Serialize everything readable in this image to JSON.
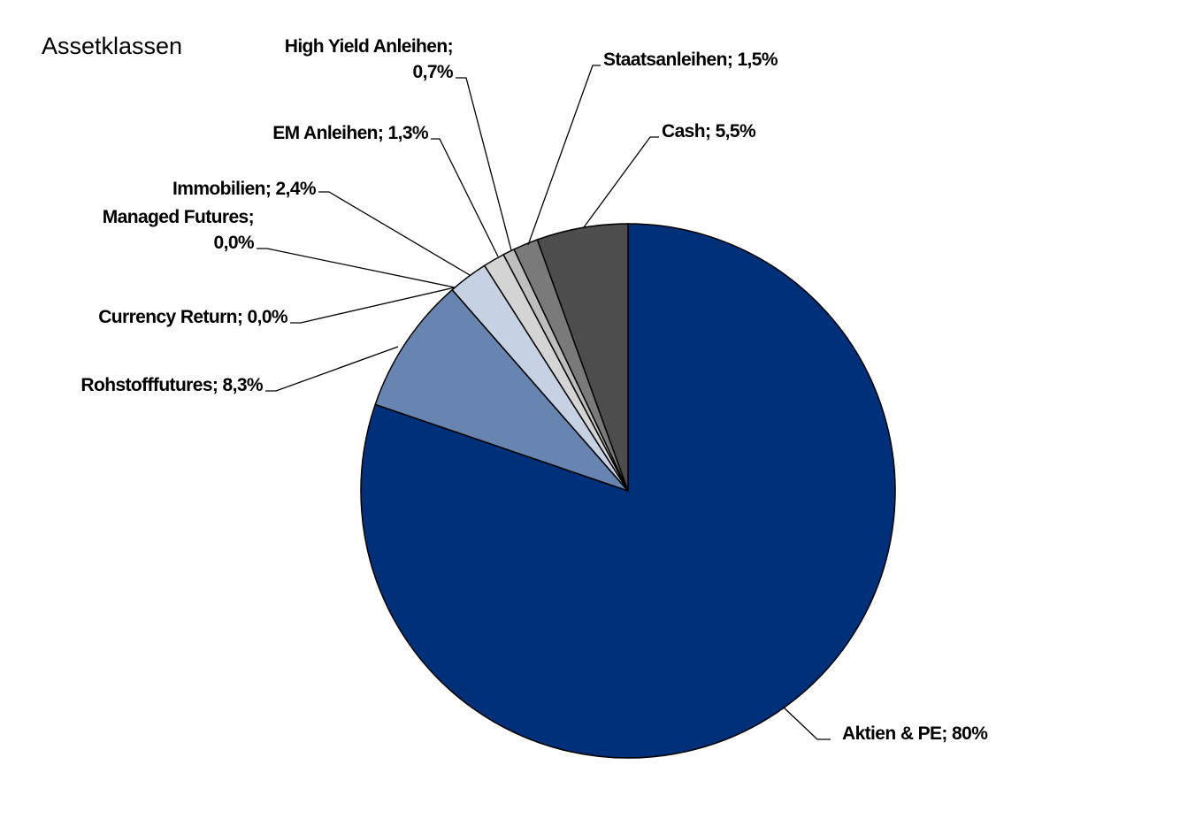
{
  "chart_data": {
    "type": "pie",
    "title": "Assetklassen",
    "slices": [
      {
        "key": "aktien",
        "name": "Aktien & PE",
        "value": 80,
        "display": "Aktien & PE; 80%",
        "label_lines": [
          "Aktien & PE; 80%"
        ],
        "color": "#00307A"
      },
      {
        "key": "rohstoff",
        "name": "Rohstofffutures",
        "value": 8.3,
        "display": "Rohstofffutures; 8,3%",
        "label_lines": [
          "Rohstofffutures; 8,3%"
        ],
        "color": "#6785B0"
      },
      {
        "key": "currency",
        "name": "Currency Return",
        "value": 0.0,
        "display": "Currency Return; 0,0%",
        "label_lines": [
          "Currency Return; 0,0%"
        ],
        "color": "#9FB3D1"
      },
      {
        "key": "managed",
        "name": "Managed Futures",
        "value": 0.0,
        "display": "Managed Futures; 0,0%",
        "label_lines": [
          "Managed Futures;",
          "0,0%"
        ],
        "color": "#B3C2DA"
      },
      {
        "key": "immobilien",
        "name": "Immobilien",
        "value": 2.4,
        "display": "Immobilien; 2,4%",
        "label_lines": [
          "Immobilien; 2,4%"
        ],
        "color": "#C6D1E4"
      },
      {
        "key": "em",
        "name": "EM Anleihen",
        "value": 1.3,
        "display": "EM Anleihen; 1,3%",
        "label_lines": [
          "EM Anleihen; 1,3%"
        ],
        "color": "#D4D4D4"
      },
      {
        "key": "hy",
        "name": "High Yield Anleihen",
        "value": 0.7,
        "display": "High Yield Anleihen; 0,7%",
        "label_lines": [
          "High Yield Anleihen;",
          "0,7%"
        ],
        "color": "#BEBEBE"
      },
      {
        "key": "staat",
        "name": "Staatsanleihen",
        "value": 1.5,
        "display": "Staatsanleihen; 1,5%",
        "label_lines": [
          "Staatsanleihen; 1,5%"
        ],
        "color": "#7A7A7A"
      },
      {
        "key": "cash",
        "name": "Cash",
        "value": 5.5,
        "display": "Cash; 5,5%",
        "label_lines": [
          "Cash; 5,5%"
        ],
        "color": "#4D4D4D"
      }
    ]
  }
}
